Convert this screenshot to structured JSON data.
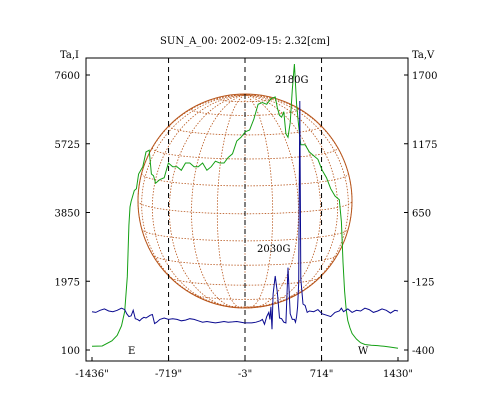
{
  "chart_data": {
    "type": "line",
    "title": "SUN_A_00: 2002-09-15: 2.32[cm]",
    "x_tick_labels": [
      "-1436\"",
      "-719\"",
      "-3\"",
      "714\"",
      "1430\""
    ],
    "x_ticks": [
      -1436,
      -719,
      -3,
      714,
      1430
    ],
    "xlim": [
      -1436,
      1430
    ],
    "left_axis": {
      "label": "Ta,I",
      "ticks": [
        100,
        1975,
        3850,
        5725,
        7600
      ],
      "tick_labels": [
        "100",
        "1975",
        "3850",
        "5725",
        "7600"
      ],
      "ylim": [
        100,
        7600
      ]
    },
    "right_axis": {
      "label": "Ta,V",
      "ticks": [
        -400,
        -125,
        650,
        1175,
        1700
      ],
      "tick_labels": [
        "-400",
        "-125",
        "650",
        "1175",
        "1700"
      ]
    },
    "annotations": [
      "2180G",
      "2030G"
    ],
    "limb_labels": [
      "E",
      "W"
    ],
    "dashed_markers_x": [
      -719,
      -3,
      714
    ],
    "grid": false,
    "colors": {
      "intensity": "#14a014",
      "polarization": "#0a0a90",
      "solar_disk": "#b8561c"
    },
    "series": [
      {
        "color_key": "intensity",
        "x": [
          -1436,
          -1340,
          -1250,
          -1200,
          -1160,
          -1130,
          -1105,
          -1090,
          -1080,
          -1070,
          -1055,
          -1040,
          -1020,
          -1000,
          -960,
          -930,
          -900,
          -880,
          -860,
          -840,
          -800,
          -760,
          -720,
          -680,
          -640,
          -600,
          -560,
          -520,
          -480,
          -440,
          -400,
          -360,
          -320,
          -280,
          -240,
          -200,
          -160,
          -120,
          -80,
          -40,
          0,
          40,
          80,
          120,
          160,
          200,
          240,
          280,
          300,
          320,
          340,
          360,
          380,
          400,
          420,
          440,
          460,
          480,
          500,
          520,
          560,
          600,
          640,
          680,
          720,
          760,
          800,
          840,
          880,
          900,
          915,
          930,
          945,
          960,
          980,
          1000,
          1040,
          1080,
          1120,
          1180,
          1240,
          1300,
          1360,
          1430
        ],
        "y": [
          200,
          210,
          350,
          500,
          760,
          1150,
          2100,
          3500,
          4000,
          4150,
          4300,
          4450,
          4500,
          4900,
          5100,
          5500,
          5550,
          4900,
          4850,
          4650,
          4750,
          4800,
          5200,
          5100,
          5100,
          5000,
          5200,
          5200,
          5100,
          5100,
          5200,
          5000,
          5100,
          5250,
          5200,
          5200,
          5350,
          5450,
          5800,
          5900,
          6050,
          6100,
          6400,
          6800,
          6850,
          6800,
          6950,
          7000,
          6700,
          6500,
          6450,
          6600,
          6000,
          5900,
          6300,
          7200,
          7900,
          6800,
          6200,
          5700,
          5700,
          5500,
          5400,
          5300,
          5000,
          4800,
          4500,
          4300,
          4200,
          3600,
          2500,
          1700,
          1200,
          900,
          700,
          550,
          400,
          300,
          250,
          230,
          220,
          200,
          180,
          150
        ]
      },
      {
        "color_key": "polarization",
        "x": [
          -1436,
          -1400,
          -1360,
          -1320,
          -1280,
          -1240,
          -1200,
          -1160,
          -1130,
          -1110,
          -1090,
          -1070,
          -1050,
          -1030,
          -1010,
          -990,
          -970,
          -950,
          -930,
          -910,
          -890,
          -870,
          -850,
          -830,
          -800,
          -760,
          -720,
          -680,
          -640,
          -600,
          -560,
          -520,
          -480,
          -440,
          -400,
          -360,
          -320,
          -280,
          -240,
          -200,
          -160,
          -120,
          -80,
          -40,
          -10,
          20,
          60,
          100,
          140,
          160,
          180,
          200,
          220,
          230,
          240,
          250,
          260,
          280,
          300,
          320,
          340,
          360,
          380,
          400,
          420,
          440,
          460,
          470,
          480,
          490,
          500,
          510,
          520,
          540,
          560,
          580,
          600,
          640,
          680,
          720,
          760,
          800,
          840,
          880,
          900,
          920,
          960,
          1000,
          1040,
          1080,
          1120,
          1160,
          1200,
          1240,
          1280,
          1320,
          1360,
          1400,
          1430
        ],
        "y": [
          -5,
          -10,
          5,
          15,
          0,
          -5,
          5,
          20,
          10,
          -20,
          -40,
          -35,
          5,
          -55,
          -60,
          -70,
          -55,
          -45,
          -50,
          -40,
          -30,
          -25,
          -90,
          -80,
          -60,
          -50,
          -60,
          -55,
          -60,
          -70,
          -65,
          -55,
          -60,
          -70,
          -80,
          -75,
          -80,
          -85,
          -80,
          -75,
          -80,
          -78,
          -75,
          -80,
          -85,
          -85,
          -85,
          -80,
          -70,
          -60,
          -95,
          -40,
          -10,
          -60,
          30,
          -130,
          120,
          250,
          130,
          -50,
          -55,
          -80,
          -85,
          310,
          -20,
          -60,
          -60,
          -80,
          -40,
          30,
          200,
          1500,
          230,
          50,
          40,
          -10,
          0,
          -5,
          10,
          -20,
          -30,
          -40,
          -10,
          0,
          20,
          -5,
          15,
          -10,
          5,
          0,
          20,
          10,
          -10,
          0,
          15,
          5,
          -15,
          5,
          0
        ]
      }
    ]
  }
}
